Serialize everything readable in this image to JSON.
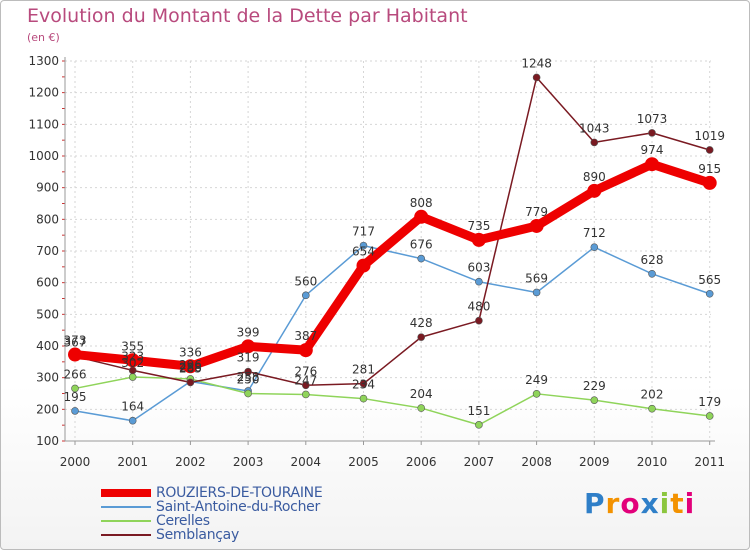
{
  "header": {
    "title": "Evolution du Montant de la Dette par Habitant",
    "subtitle": "(en €)"
  },
  "logo": {
    "letters": [
      "P",
      "r",
      "o",
      "x",
      "i",
      "t",
      "i"
    ],
    "colors": [
      "#2f7fc8",
      "#f39200",
      "#e2007a",
      "#2f7fc8",
      "#8cc63e",
      "#f39200",
      "#e2007a"
    ]
  },
  "chart_data": {
    "type": "line",
    "title": "Evolution du Montant de la Dette par Habitant",
    "subtitle": "(en €)",
    "xlabel": "",
    "ylabel": "",
    "x": [
      "2000",
      "2001",
      "2002",
      "2003",
      "2004",
      "2005",
      "2006",
      "2007",
      "2008",
      "2009",
      "2010",
      "2011"
    ],
    "ylim": [
      100,
      1300
    ],
    "yticks": [
      100,
      200,
      300,
      400,
      500,
      600,
      700,
      800,
      900,
      1000,
      1100,
      1200,
      1300
    ],
    "grid": true,
    "legend_position": "bottom-left",
    "series": [
      {
        "name": "ROUZIERS-DE-TOURAINE",
        "color": "#ee0000",
        "values": [
          373,
          355,
          336,
          399,
          387,
          654,
          808,
          735,
          779,
          890,
          974,
          915
        ],
        "labels": [
          "373",
          "355",
          "336",
          "399",
          "387",
          "654",
          "808",
          "735",
          "779",
          "890",
          "974",
          "915"
        ]
      },
      {
        "name": "Saint-Antoine-du-Rocher",
        "color": "#5a9bd5",
        "values": [
          195,
          164,
          288,
          258,
          560,
          717,
          676,
          603,
          569,
          712,
          628,
          565
        ],
        "labels": [
          "195",
          "164",
          "288",
          "258",
          "560",
          "717",
          "676",
          "603",
          "569",
          "712",
          "628",
          "565"
        ]
      },
      {
        "name": "Cerelles",
        "color": "#8fd45a",
        "values": [
          266,
          302,
          296,
          250,
          247,
          234,
          204,
          151,
          249,
          229,
          202,
          179
        ],
        "labels": [
          "266",
          "302",
          "296",
          "250",
          "247",
          "234",
          "204",
          "151",
          "249",
          "229",
          "202",
          "179"
        ]
      },
      {
        "name": "Semblançay",
        "color": "#7a1a22",
        "values": [
          367,
          323,
          285,
          319,
          276,
          281,
          428,
          480,
          1248,
          1043,
          1073,
          1019
        ],
        "labels": [
          "367",
          "323",
          "285",
          "319",
          "276",
          "281",
          "428",
          "480",
          "1248",
          "1043",
          "1073",
          "1019"
        ]
      }
    ]
  }
}
